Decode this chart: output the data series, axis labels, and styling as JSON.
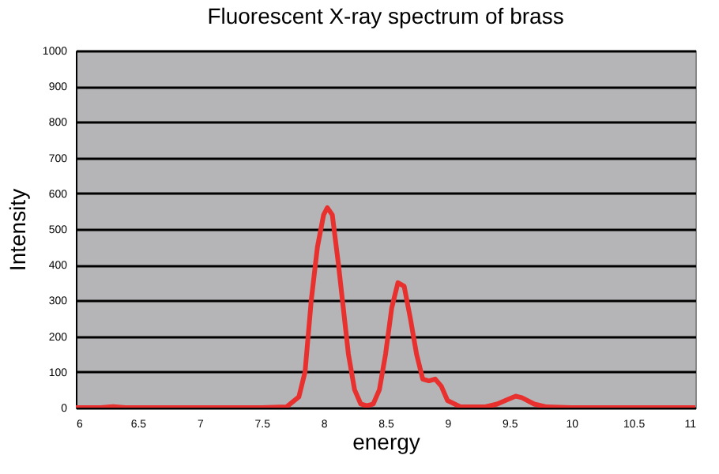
{
  "chart_data": {
    "type": "line",
    "title": "Fluorescent X-ray spectrum of brass",
    "xlabel": "energy",
    "ylabel": "Intensity",
    "xlim": [
      6,
      11
    ],
    "xticks": [
      6,
      6.5,
      7,
      7.5,
      8,
      8.5,
      9,
      9.5,
      10,
      10.5,
      11
    ],
    "ylim": [
      0,
      1000
    ],
    "yticks": [
      0,
      100,
      200,
      300,
      400,
      500,
      600,
      700,
      800,
      900,
      1000
    ],
    "grid": "y",
    "marker": "none",
    "line_style": "solid",
    "series": [
      {
        "color": "#e8302e",
        "x": [
          6,
          6.2,
          6.3,
          6.4,
          7.5,
          7.7,
          7.8,
          7.85,
          7.9,
          7.95,
          8.0,
          8.03,
          8.07,
          8.12,
          8.2,
          8.25,
          8.3,
          8.35,
          8.4,
          8.45,
          8.5,
          8.55,
          8.6,
          8.65,
          8.7,
          8.75,
          8.8,
          8.85,
          8.9,
          8.95,
          9.0,
          9.1,
          9.3,
          9.4,
          9.5,
          9.55,
          9.6,
          9.7,
          9.8,
          10,
          11
        ],
        "values": [
          0,
          0,
          3,
          0,
          0,
          2,
          30,
          100,
          300,
          450,
          540,
          560,
          540,
          400,
          150,
          50,
          10,
          5,
          10,
          50,
          150,
          280,
          350,
          340,
          250,
          150,
          80,
          75,
          80,
          60,
          20,
          3,
          2,
          10,
          25,
          32,
          28,
          10,
          2,
          0,
          0
        ]
      }
    ]
  }
}
